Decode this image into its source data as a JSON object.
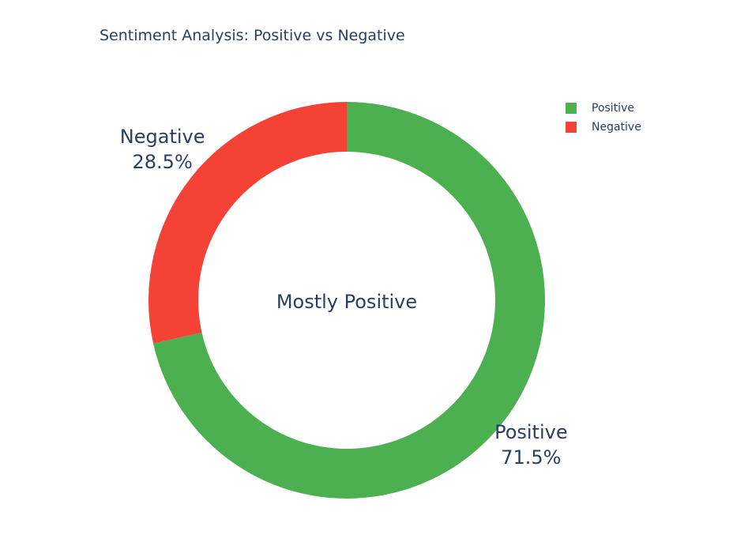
{
  "chart_data": {
    "type": "pie",
    "hole": true,
    "title": "Sentiment Analysis: Positive vs Negative",
    "center_annotation": "Mostly Positive",
    "slices": [
      {
        "label": "Positive",
        "value": 71.5,
        "percent_text": "71.5%",
        "color": "#4caf50"
      },
      {
        "label": "Negative",
        "value": 28.5,
        "percent_text": "28.5%",
        "color": "#f44336"
      }
    ],
    "legend": {
      "position": "top-right",
      "items": [
        {
          "label": "Positive",
          "color": "#4caf50"
        },
        {
          "label": "Negative",
          "color": "#f44336"
        }
      ]
    }
  }
}
